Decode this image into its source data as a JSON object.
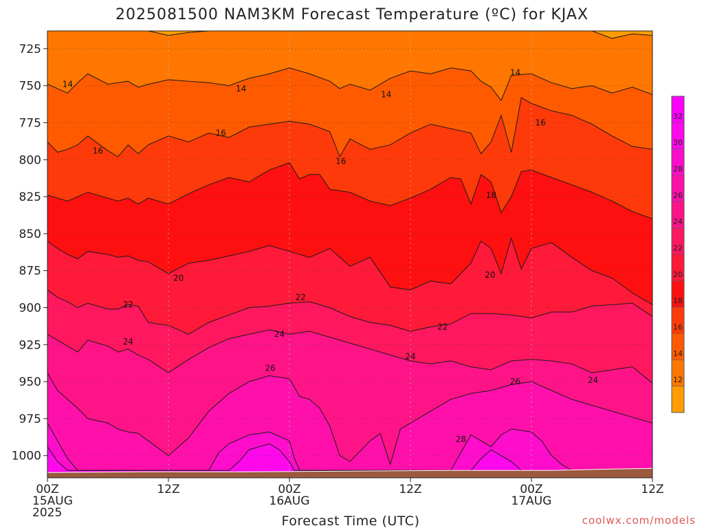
{
  "title": "2025081500 NAM3KM Forecast Temperature (ºC) for KJAX",
  "credit": "coolwx.com/models",
  "colors": {
    "ground": "#9b5a3c",
    "bins": [
      {
        "lo": 10,
        "hi": 12,
        "color": "#ff9d00"
      },
      {
        "lo": 12,
        "hi": 14,
        "color": "#ff7700"
      },
      {
        "lo": 14,
        "hi": 16,
        "color": "#ff5a00"
      },
      {
        "lo": 16,
        "hi": 18,
        "color": "#ff3a0a"
      },
      {
        "lo": 18,
        "hi": 20,
        "color": "#ff1010"
      },
      {
        "lo": 20,
        "hi": 22,
        "color": "#ff1a3a"
      },
      {
        "lo": 22,
        "hi": 24,
        "color": "#ff1760"
      },
      {
        "lo": 24,
        "hi": 26,
        "color": "#ff1488"
      },
      {
        "lo": 26,
        "hi": 28,
        "color": "#ff10ab"
      },
      {
        "lo": 28,
        "hi": 30,
        "color": "#ff0dcd"
      },
      {
        "lo": 30,
        "hi": 32,
        "color": "#ff08ec"
      },
      {
        "lo": 32,
        "hi": 34,
        "color": "#ff00ff"
      }
    ]
  },
  "chart_data": {
    "type": "heatmap",
    "title": "2025081500 NAM3KM Forecast Temperature (ºC) for KJAX",
    "xlabel": "Forecast Time (UTC)",
    "ylabel": "",
    "x_unit": "hours since 2025-08-15 00Z",
    "xlim": [
      0,
      60
    ],
    "ylim": [
      1015,
      713
    ],
    "y_reversed": true,
    "x_ticks": [
      {
        "x": 0,
        "lines": [
          "00Z",
          "15AUG",
          "2025"
        ]
      },
      {
        "x": 12,
        "lines": [
          "12Z"
        ]
      },
      {
        "x": 24,
        "lines": [
          "00Z",
          "16AUG"
        ]
      },
      {
        "x": 36,
        "lines": [
          "12Z"
        ]
      },
      {
        "x": 48,
        "lines": [
          "00Z",
          "17AUG"
        ]
      },
      {
        "x": 60,
        "lines": [
          "12Z"
        ]
      }
    ],
    "y_ticks": [
      725,
      750,
      775,
      800,
      825,
      850,
      875,
      900,
      925,
      950,
      975,
      1000
    ],
    "ground_top_pressure": 1010,
    "colorbar": {
      "min": 10,
      "max": 34,
      "step": 2,
      "labels": [
        12,
        14,
        16,
        18,
        20,
        22,
        24,
        26,
        28,
        30,
        32
      ]
    },
    "isotherms": [
      {
        "value": 12,
        "x": [
          0,
          2,
          3,
          4,
          6,
          7,
          8,
          9,
          10,
          12,
          14,
          16,
          18,
          20,
          22,
          24,
          26,
          28,
          30,
          32,
          34,
          36,
          38,
          40,
          42,
          44,
          46,
          48,
          50,
          52,
          54,
          56,
          58,
          60
        ],
        "p": [
          713,
          713,
          713,
          713,
          713,
          713,
          713,
          713,
          713,
          716,
          714,
          713,
          713,
          713,
          713,
          713,
          713,
          713,
          713,
          713,
          713,
          713,
          713,
          713,
          713,
          713,
          713,
          713,
          713,
          713,
          713,
          718,
          715,
          716
        ]
      },
      {
        "value": 14,
        "x": [
          0,
          1,
          2,
          3,
          4,
          6,
          7,
          8,
          9,
          10,
          12,
          14,
          16,
          18,
          20,
          22,
          24,
          26,
          28,
          29,
          30,
          32,
          34,
          36,
          38,
          40,
          42,
          43,
          44,
          45,
          46,
          48,
          50,
          52,
          54,
          56,
          58,
          60
        ],
        "p": [
          749,
          752,
          755,
          748,
          742,
          749,
          748,
          747,
          751,
          749,
          746,
          747,
          748,
          750,
          745,
          742,
          738,
          742,
          747,
          752,
          749,
          753,
          745,
          740,
          742,
          738,
          740,
          747,
          751,
          760,
          743,
          742,
          748,
          752,
          750,
          755,
          751,
          756
        ]
      },
      {
        "value": 16,
        "x": [
          0,
          1,
          2,
          3,
          4,
          6,
          7,
          8,
          9,
          10,
          12,
          14,
          16,
          18,
          20,
          22,
          24,
          26,
          28,
          29,
          30,
          32,
          34,
          36,
          38,
          40,
          42,
          43,
          44,
          45,
          46,
          47,
          48,
          50,
          52,
          54,
          56,
          58,
          60
        ],
        "p": [
          788,
          795,
          793,
          790,
          784,
          794,
          798,
          790,
          796,
          790,
          784,
          788,
          782,
          785,
          778,
          776,
          774,
          776,
          781,
          798,
          786,
          793,
          790,
          782,
          776,
          779,
          782,
          796,
          788,
          770,
          795,
          758,
          762,
          767,
          770,
          776,
          784,
          791,
          793
        ]
      },
      {
        "value": 18,
        "x": [
          0,
          1,
          2,
          3,
          4,
          6,
          7,
          8,
          9,
          10,
          12,
          14,
          16,
          18,
          20,
          22,
          24,
          25,
          26,
          27,
          28,
          30,
          32,
          34,
          36,
          38,
          40,
          41,
          42,
          43,
          44,
          45,
          46,
          47,
          48,
          50,
          52,
          54,
          56,
          58,
          60
        ],
        "p": [
          824,
          826,
          828,
          825,
          822,
          826,
          828,
          826,
          830,
          826,
          830,
          823,
          817,
          812,
          815,
          807,
          802,
          813,
          810,
          810,
          820,
          822,
          828,
          831,
          826,
          820,
          812,
          813,
          830,
          810,
          815,
          836,
          825,
          808,
          807,
          812,
          817,
          822,
          828,
          835,
          840
        ]
      },
      {
        "value": 20,
        "x": [
          0,
          1,
          2,
          3,
          4,
          6,
          7,
          8,
          9,
          10,
          12,
          14,
          16,
          18,
          20,
          22,
          24,
          26,
          28,
          29,
          30,
          32,
          34,
          36,
          38,
          40,
          42,
          43,
          44,
          45,
          46,
          47,
          48,
          50,
          52,
          54,
          56,
          58,
          60
        ],
        "p": [
          855,
          860,
          864,
          867,
          862,
          864,
          866,
          865,
          868,
          869,
          877,
          870,
          868,
          865,
          862,
          858,
          862,
          866,
          860,
          866,
          872,
          866,
          886,
          888,
          882,
          884,
          870,
          855,
          860,
          877,
          853,
          874,
          860,
          856,
          866,
          875,
          880,
          890,
          898
        ]
      },
      {
        "value": 22,
        "x": [
          0,
          1,
          2,
          3,
          4,
          6,
          7,
          8,
          9,
          10,
          12,
          14,
          16,
          18,
          20,
          22,
          24,
          26,
          28,
          30,
          32,
          34,
          36,
          38,
          40,
          42,
          44,
          46,
          48,
          50,
          52,
          54,
          56,
          58,
          60
        ],
        "p": [
          888,
          893,
          896,
          900,
          897,
          901,
          901,
          898,
          899,
          910,
          912,
          918,
          910,
          905,
          900,
          899,
          897,
          896,
          900,
          906,
          910,
          912,
          916,
          913,
          911,
          904,
          904,
          905,
          907,
          903,
          903,
          899,
          898,
          897,
          906
        ]
      },
      {
        "value": 24,
        "x": [
          0,
          1,
          2,
          3,
          4,
          6,
          7,
          8,
          9,
          10,
          12,
          14,
          16,
          18,
          20,
          22,
          24,
          26,
          28,
          30,
          32,
          34,
          36,
          38,
          40,
          42,
          44,
          46,
          48,
          50,
          52,
          54,
          56,
          58,
          60
        ],
        "p": [
          918,
          922,
          926,
          930,
          922,
          926,
          930,
          928,
          932,
          935,
          944,
          935,
          927,
          921,
          918,
          915,
          918,
          916,
          920,
          924,
          928,
          932,
          936,
          938,
          936,
          940,
          942,
          936,
          935,
          936,
          938,
          944,
          942,
          940,
          951
        ]
      },
      {
        "value": 26,
        "x": [
          0,
          1,
          2,
          3,
          4,
          6,
          7,
          8,
          9,
          10,
          12,
          14,
          16,
          18,
          20,
          22,
          24,
          25,
          26,
          27,
          28,
          29,
          30,
          32,
          33,
          34,
          35,
          36,
          38,
          40,
          42,
          44,
          46,
          48,
          50,
          52,
          54,
          56,
          58,
          60
        ],
        "p": [
          944,
          956,
          962,
          968,
          975,
          978,
          982,
          984,
          985,
          990,
          1000,
          988,
          970,
          958,
          950,
          946,
          948,
          960,
          962,
          968,
          980,
          1000,
          1004,
          990,
          985,
          1006,
          982,
          978,
          970,
          962,
          958,
          956,
          952,
          950,
          956,
          962,
          966,
          970,
          974,
          978
        ]
      },
      {
        "value": 28,
        "x": [
          0,
          1,
          2,
          3,
          4,
          5,
          6,
          16,
          17,
          18,
          20,
          22,
          24,
          24.5,
          25,
          40,
          41,
          42,
          43,
          44,
          45,
          46,
          48,
          49,
          50,
          51,
          52
        ],
        "p": [
          978,
          990,
          1002,
          1010,
          1010,
          1010,
          1010,
          1010,
          998,
          992,
          986,
          984,
          990,
          1002,
          1010,
          1010,
          998,
          986,
          990,
          994,
          986,
          982,
          984,
          990,
          1000,
          1006,
          1010
        ]
      },
      {
        "value": 30,
        "x": [
          0,
          1,
          2,
          3,
          18,
          19,
          20,
          22,
          23,
          24,
          24.5,
          42,
          43,
          44,
          45,
          46,
          47
        ],
        "p": [
          994,
          1004,
          1010,
          1010,
          1010,
          1004,
          996,
          992,
          996,
          1004,
          1010,
          1010,
          1002,
          996,
          1000,
          1004,
          1010
        ]
      }
    ],
    "isotherm_labels": [
      {
        "value": 14,
        "x": 2,
        "p": 749
      },
      {
        "value": 14,
        "x": 19.2,
        "p": 752
      },
      {
        "value": 14,
        "x": 33.6,
        "p": 756
      },
      {
        "value": 14,
        "x": 46.4,
        "p": 741
      },
      {
        "value": 16,
        "x": 5,
        "p": 794
      },
      {
        "value": 16,
        "x": 17.2,
        "p": 782
      },
      {
        "value": 16,
        "x": 29.1,
        "p": 801
      },
      {
        "value": 16,
        "x": 48.9,
        "p": 775
      },
      {
        "value": 18,
        "x": 44,
        "p": 824
      },
      {
        "value": 20,
        "x": 13,
        "p": 880
      },
      {
        "value": 20,
        "x": 43.9,
        "p": 878
      },
      {
        "value": 22,
        "x": 8,
        "p": 898
      },
      {
        "value": 22,
        "x": 25.1,
        "p": 893
      },
      {
        "value": 22,
        "x": 39.2,
        "p": 913
      },
      {
        "value": 24,
        "x": 8,
        "p": 923
      },
      {
        "value": 24,
        "x": 23,
        "p": 918
      },
      {
        "value": 24,
        "x": 36,
        "p": 933
      },
      {
        "value": 24,
        "x": 54.1,
        "p": 949
      },
      {
        "value": 26,
        "x": 22.1,
        "p": 941
      },
      {
        "value": 26,
        "x": 46.4,
        "p": 950
      },
      {
        "value": 28,
        "x": 41,
        "p": 989
      }
    ]
  }
}
